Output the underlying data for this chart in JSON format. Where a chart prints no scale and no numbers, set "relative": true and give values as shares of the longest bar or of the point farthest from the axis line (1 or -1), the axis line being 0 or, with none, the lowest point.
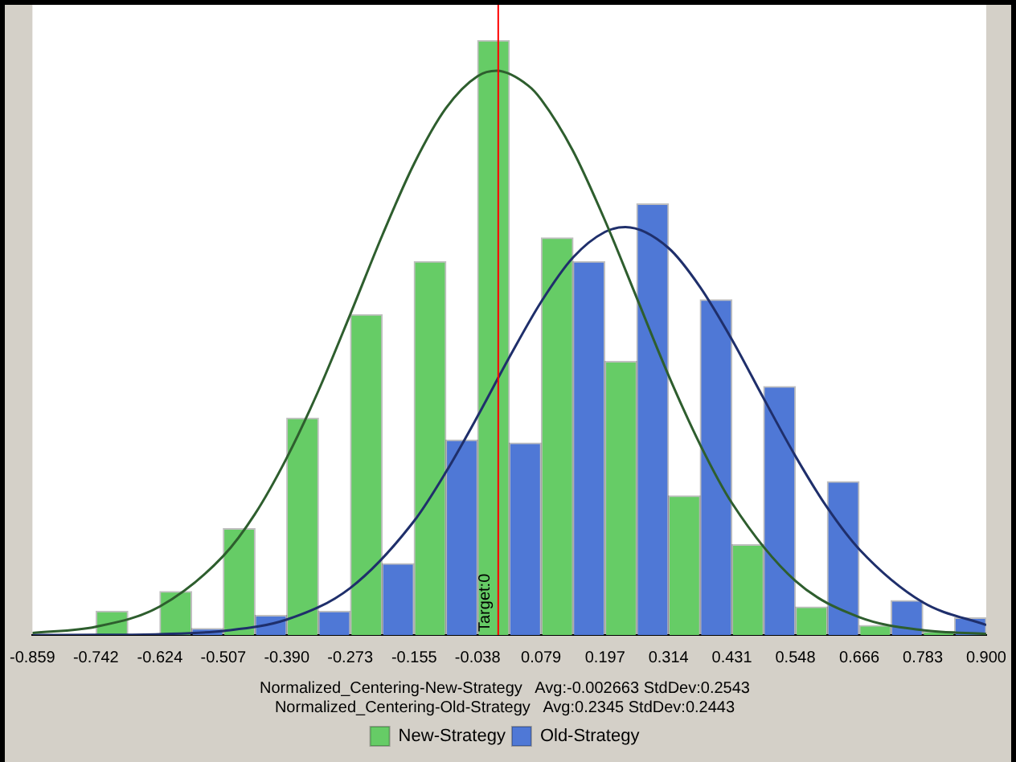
{
  "chart_data": {
    "type": "histogram",
    "relative": true,
    "bins": [
      -0.859,
      -0.742,
      -0.624,
      -0.507,
      -0.39,
      -0.273,
      -0.155,
      -0.038,
      0.079,
      0.197,
      0.314,
      0.431,
      0.548,
      0.666,
      0.783,
      0.9
    ],
    "series": [
      {
        "name": "New-Strategy",
        "color": "#66cc66",
        "values": [
          0,
          0.04,
          0.073,
          0.179,
          0.365,
          0.539,
          0.628,
          1,
          0.668,
          0.46,
          0.234,
          0.152,
          0.047,
          0.016,
          0.006
        ]
      },
      {
        "name": "Old-Strategy",
        "color": "#4f78d6",
        "values": [
          0,
          null,
          0.011,
          0.033,
          0.04,
          0.12,
          0.328,
          0.323,
          0.628,
          0.725,
          0.564,
          0.418,
          0.258,
          0.058,
          0.029
        ]
      },
      {
        "type": "line",
        "color": "#2e5e2e",
        "x": [
          -0.859,
          -0.742,
          -0.624,
          -0.507,
          -0.449,
          -0.39,
          -0.332,
          -0.273,
          -0.2135,
          -0.155,
          -0.0965,
          -0.038,
          -0.0027,
          0.0555,
          0.079,
          0.1375,
          0.197,
          0.2555,
          0.314,
          0.3725,
          0.431,
          0.548,
          0.666,
          0.783,
          0.9
        ],
        "values": [
          0.0033,
          0.0139,
          0.048,
          0.133,
          0.203,
          0.298,
          0.41,
          0.539,
          0.673,
          0.793,
          0.886,
          0.94,
          0.949,
          0.924,
          0.901,
          0.815,
          0.697,
          0.567,
          0.437,
          0.32,
          0.222,
          0.091,
          0.03,
          0.008,
          0.0017
        ]
      },
      {
        "type": "line",
        "color": "#1f2f6b",
        "x": [
          -0.859,
          -0.742,
          -0.624,
          -0.507,
          -0.39,
          -0.273,
          -0.155,
          -0.0965,
          -0.038,
          0.0205,
          0.079,
          0.138,
          0.197,
          0.2345,
          0.314,
          0.3725,
          0.431,
          0.4895,
          0.548,
          0.607,
          0.666,
          0.783,
          0.9
        ],
        "values": [
          0,
          0.0002,
          0.0014,
          0.0069,
          0.026,
          0.079,
          0.192,
          0.274,
          0.368,
          0.467,
          0.56,
          0.635,
          0.678,
          0.686,
          0.651,
          0.585,
          0.497,
          0.398,
          0.301,
          0.214,
          0.144,
          0.055,
          0.0168
        ]
      }
    ],
    "xlim": [
      -0.859,
      0.9
    ],
    "xticks": [
      {
        "value": -0.859,
        "label": "-0.859"
      },
      -0.742,
      -0.624,
      -0.507,
      {
        "value": -0.39,
        "label": "-0.390"
      },
      -0.273,
      -0.155,
      -0.038,
      0.079,
      0.197,
      0.314,
      0.431,
      0.548,
      0.666,
      0.783,
      {
        "value": 0.9,
        "label": "0.900"
      }
    ],
    "ref_lines": [
      {
        "axis": "x",
        "value": 0,
        "label": "Target:0",
        "color": "#ff0000"
      }
    ],
    "annotations": [
      "Normalized_Centering-New-Strategy   Avg:-0.002663 StdDev:0.2543",
      "Normalized_Centering-Old-Strategy   Avg:0.2345 StdDev:0.2443"
    ],
    "legend": "bottom",
    "grid": false,
    "marker": "none"
  }
}
